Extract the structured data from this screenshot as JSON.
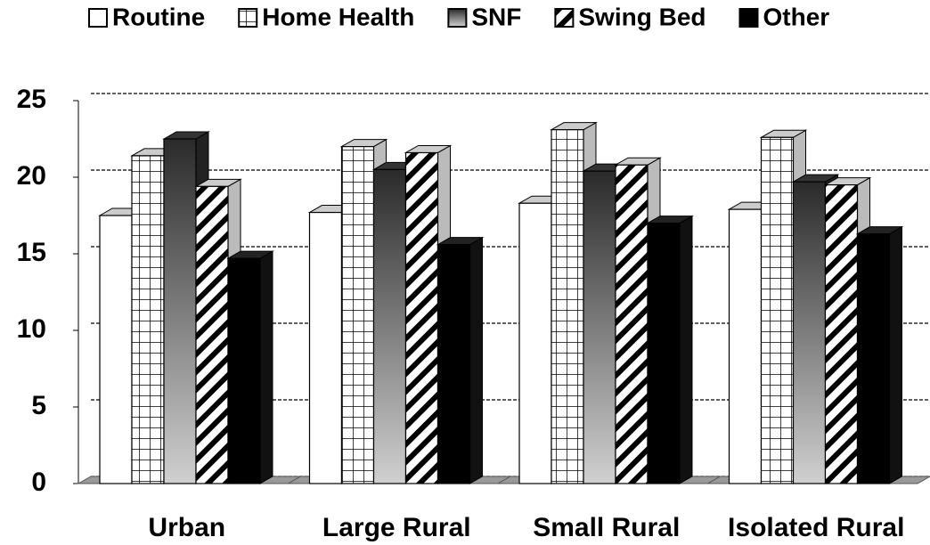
{
  "chart_data": {
    "type": "bar3d",
    "categories": [
      "Urban",
      "Large Rural",
      "Small Rural",
      "Isolated Rural"
    ],
    "series": [
      {
        "name": "Routine",
        "color": "#ffffff",
        "pattern": "solid",
        "values": [
          17.5,
          17.7,
          18.3,
          17.9
        ]
      },
      {
        "name": "Home Health",
        "color": "#ffffff",
        "pattern": "grid",
        "values": [
          21.4,
          22.0,
          23.1,
          22.6
        ]
      },
      {
        "name": "SNF",
        "color": "#555555",
        "pattern": "gradient",
        "values": [
          22.5,
          20.5,
          20.4,
          19.7
        ]
      },
      {
        "name": "Swing Bed",
        "color": "#ffffff",
        "pattern": "diagonal",
        "values": [
          19.4,
          21.6,
          20.8,
          19.5
        ]
      },
      {
        "name": "Other",
        "color": "#000000",
        "pattern": "solid",
        "values": [
          14.7,
          15.6,
          17.0,
          16.3
        ]
      }
    ],
    "ylim": [
      0,
      25
    ],
    "yticks": [
      0,
      5,
      10,
      15,
      20,
      25
    ],
    "grid": true,
    "legend": "top"
  }
}
